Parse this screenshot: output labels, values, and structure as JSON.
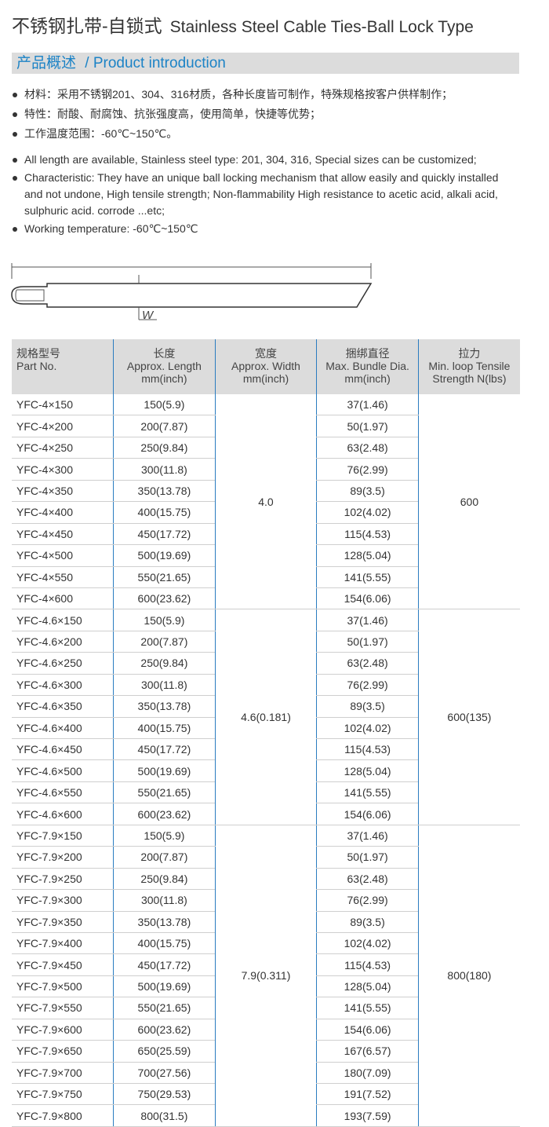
{
  "header": {
    "title": "不锈钢扎带-自锁式",
    "subtitle": "Stainless Steel Cable Ties-Ball Lock Type"
  },
  "section": {
    "cn": "产品概述",
    "en": "/ Product introduction"
  },
  "bullets_cn": [
    "材料：采用不锈钢201、304、316材质，各种长度皆可制作，特殊规格按客户供样制作；",
    "特性：耐酸、耐腐蚀、抗张强度高，使用简单，快捷等优势；",
    "工作温度范围：-60℃~150℃。"
  ],
  "bullets_en": [
    "All length are available, Stainless steel type: 201, 304, 316, Special sizes can be customized;",
    "Characteristic: They have an unique ball locking mechanism that allow easily and quickly installed and not undone, High tensile strength; Non-flammability High resistance to acetic acid, alkali acid, sulphuric acid. corrode ...etc;",
    "Working temperature: -60℃~150℃"
  ],
  "diagram": {
    "label": "W"
  },
  "table": {
    "header": [
      [
        "规格型号",
        "Part No."
      ],
      [
        "长度",
        "Approx. Length",
        "mm(inch)"
      ],
      [
        "宽度",
        "Approx. Width",
        "mm(inch)"
      ],
      [
        "捆绑直径",
        "Max. Bundle Dia.",
        "mm(inch)"
      ],
      [
        "拉力",
        "Min. loop Tensile",
        "Strength N(lbs)"
      ]
    ],
    "groups": [
      {
        "width": "4.0",
        "tension": "600",
        "rows": [
          [
            "YFC-4×150",
            "150(5.9)",
            "37(1.46)"
          ],
          [
            "YFC-4×200",
            "200(7.87)",
            "50(1.97)"
          ],
          [
            "YFC-4×250",
            "250(9.84)",
            "63(2.48)"
          ],
          [
            "YFC-4×300",
            "300(11.8)",
            "76(2.99)"
          ],
          [
            "YFC-4×350",
            "350(13.78)",
            "89(3.5)"
          ],
          [
            "YFC-4×400",
            "400(15.75)",
            "102(4.02)"
          ],
          [
            "YFC-4×450",
            "450(17.72)",
            "115(4.53)"
          ],
          [
            "YFC-4×500",
            "500(19.69)",
            "128(5.04)"
          ],
          [
            "YFC-4×550",
            "550(21.65)",
            "141(5.55)"
          ],
          [
            "YFC-4×600",
            "600(23.62)",
            "154(6.06)"
          ]
        ]
      },
      {
        "width": "4.6(0.181)",
        "tension": "600(135)",
        "rows": [
          [
            "YFC-4.6×150",
            "150(5.9)",
            "37(1.46)"
          ],
          [
            "YFC-4.6×200",
            "200(7.87)",
            "50(1.97)"
          ],
          [
            "YFC-4.6×250",
            "250(9.84)",
            "63(2.48)"
          ],
          [
            "YFC-4.6×300",
            "300(11.8)",
            "76(2.99)"
          ],
          [
            "YFC-4.6×350",
            "350(13.78)",
            "89(3.5)"
          ],
          [
            "YFC-4.6×400",
            "400(15.75)",
            "102(4.02)"
          ],
          [
            "YFC-4.6×450",
            "450(17.72)",
            "115(4.53)"
          ],
          [
            "YFC-4.6×500",
            "500(19.69)",
            "128(5.04)"
          ],
          [
            "YFC-4.6×550",
            "550(21.65)",
            "141(5.55)"
          ],
          [
            "YFC-4.6×600",
            "600(23.62)",
            "154(6.06)"
          ]
        ]
      },
      {
        "width": "7.9(0.311)",
        "tension": "800(180)",
        "rows": [
          [
            "YFC-7.9×150",
            "150(5.9)",
            "37(1.46)"
          ],
          [
            "YFC-7.9×200",
            "200(7.87)",
            "50(1.97)"
          ],
          [
            "YFC-7.9×250",
            "250(9.84)",
            "63(2.48)"
          ],
          [
            "YFC-7.9×300",
            "300(11.8)",
            "76(2.99)"
          ],
          [
            "YFC-7.9×350",
            "350(13.78)",
            "89(3.5)"
          ],
          [
            "YFC-7.9×400",
            "400(15.75)",
            "102(4.02)"
          ],
          [
            "YFC-7.9×450",
            "450(17.72)",
            "115(4.53)"
          ],
          [
            "YFC-7.9×500",
            "500(19.69)",
            "128(5.04)"
          ],
          [
            "YFC-7.9×550",
            "550(21.65)",
            "141(5.55)"
          ],
          [
            "YFC-7.9×600",
            "600(23.62)",
            "154(6.06)"
          ],
          [
            "YFC-7.9×650",
            "650(25.59)",
            "167(6.57)"
          ],
          [
            "YFC-7.9×700",
            "700(27.56)",
            "180(7.09)"
          ],
          [
            "YFC-7.9×750",
            "750(29.53)",
            "191(7.52)"
          ],
          [
            "YFC-7.9×800",
            "800(31.5)",
            "193(7.59)"
          ]
        ]
      }
    ]
  }
}
